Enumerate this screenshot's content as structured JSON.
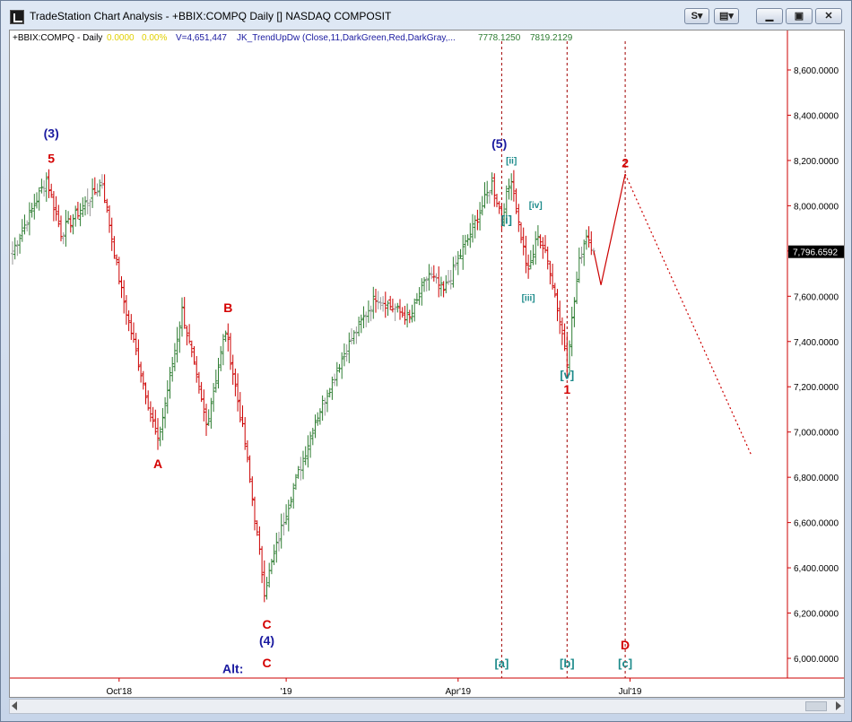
{
  "window": {
    "title": "TradeStation Chart Analysis - +BBIX:COMPQ Daily [] NASDAQ COMPOSIT",
    "buttons": [
      "S",
      "",
      "",
      "",
      ""
    ]
  },
  "status": {
    "symbol": "+BBIX:COMPQ - Daily",
    "change": "0.0000",
    "change_pct": "0.00%",
    "volume": "V=4,651,447",
    "indicator": "JK_TrendUpDw (Close,11,DarkGreen,Red,DarkGray,...",
    "ind_val1": "7778.1250",
    "ind_val2": "7819.2129"
  },
  "colors": {
    "up": "#2e7d32",
    "down": "#cc0000",
    "neutral": "#999999",
    "wave_red": "#d40000",
    "wave_blue": "#1a1aa0",
    "wave_teal": "#1b8a8a",
    "axis": "#cc0000"
  },
  "chart_data": {
    "type": "bar",
    "yticks": [
      "8,600.0000",
      "8,400.0000",
      "8,200.0000",
      "8,000.0000",
      "7,800.0000",
      "7,600.0000",
      "7,400.0000",
      "7,200.0000",
      "7,000.0000",
      "6,800.0000",
      "6,600.0000",
      "6,400.0000",
      "6,200.0000",
      "6,000.0000"
    ],
    "ytick_values": [
      8600,
      8400,
      8200,
      8000,
      7800,
      7600,
      7400,
      7200,
      7000,
      6800,
      6600,
      6400,
      6200,
      6000
    ],
    "ylim": [
      5900,
      8800
    ],
    "last_price": "7,796.6592",
    "last_price_value": 7796.6592,
    "xticks": [
      "Oct'18",
      "'19",
      "Apr'19",
      "Jul'19"
    ],
    "xtick_bar_index": [
      44,
      113,
      184,
      255
    ],
    "vlines_bar_index": [
      202,
      229,
      253
    ],
    "pivots": [
      {
        "i": 0,
        "v": 7800
      },
      {
        "i": 14,
        "v": 8120
      },
      {
        "i": 20,
        "v": 7880
      },
      {
        "i": 37,
        "v": 8100
      },
      {
        "i": 45,
        "v": 7620
      },
      {
        "i": 60,
        "v": 6950
      },
      {
        "i": 70,
        "v": 7540
      },
      {
        "i": 80,
        "v": 7030
      },
      {
        "i": 88,
        "v": 7450
      },
      {
        "i": 96,
        "v": 6950
      },
      {
        "i": 104,
        "v": 6300
      },
      {
        "i": 113,
        "v": 6650
      },
      {
        "i": 125,
        "v": 7050
      },
      {
        "i": 137,
        "v": 7350
      },
      {
        "i": 150,
        "v": 7600
      },
      {
        "i": 164,
        "v": 7500
      },
      {
        "i": 172,
        "v": 7700
      },
      {
        "i": 178,
        "v": 7620
      },
      {
        "i": 190,
        "v": 7900
      },
      {
        "i": 198,
        "v": 8100
      },
      {
        "i": 202,
        "v": 7950
      },
      {
        "i": 206,
        "v": 8130
      },
      {
        "i": 209,
        "v": 7920
      },
      {
        "i": 213,
        "v": 7700
      },
      {
        "i": 217,
        "v": 7880
      },
      {
        "i": 222,
        "v": 7720
      },
      {
        "i": 229,
        "v": 7320
      },
      {
        "i": 234,
        "v": 7750
      },
      {
        "i": 237,
        "v": 7880
      },
      {
        "i": 240,
        "v": 7800
      }
    ],
    "projection_solid": [
      {
        "i": 240,
        "v": 7800
      },
      {
        "i": 243,
        "v": 7650
      },
      {
        "i": 253,
        "v": 8140
      }
    ],
    "projection_dotted": [
      {
        "i": 253,
        "v": 8140
      },
      {
        "i": 305,
        "v": 6900
      }
    ],
    "wave_labels": [
      {
        "text": "(3)",
        "i": 16,
        "v": 8300,
        "color": "blue"
      },
      {
        "text": "5",
        "i": 16,
        "v": 8190,
        "color": "red"
      },
      {
        "text": "A",
        "i": 60,
        "v": 6840,
        "color": "red"
      },
      {
        "text": "B",
        "i": 89,
        "v": 7530,
        "color": "red"
      },
      {
        "text": "C",
        "i": 105,
        "v": 6130,
        "color": "red"
      },
      {
        "text": "(4)",
        "i": 105,
        "v": 6060,
        "color": "blue"
      },
      {
        "text": "Alt:",
        "i": 91,
        "v": 5935,
        "color": "blue"
      },
      {
        "text": "C",
        "i": 105,
        "v": 5960,
        "color": "red"
      },
      {
        "text": "(5)",
        "i": 201,
        "v": 8255,
        "color": "blue"
      },
      {
        "text": "[ii]",
        "i": 206,
        "v": 8185,
        "color": "teal"
      },
      {
        "text": "[i]",
        "i": 204,
        "v": 7920,
        "color": "teal"
      },
      {
        "text": "[iv]",
        "i": 216,
        "v": 7990,
        "color": "teal"
      },
      {
        "text": "[iii]",
        "i": 213,
        "v": 7580,
        "color": "teal"
      },
      {
        "text": "[v]",
        "i": 229,
        "v": 7235,
        "color": "teal"
      },
      {
        "text": "1",
        "i": 229,
        "v": 7170,
        "color": "red"
      },
      {
        "text": "2",
        "i": 253,
        "v": 8170,
        "color": "red"
      },
      {
        "text": "D",
        "i": 253,
        "v": 6040,
        "color": "red"
      },
      {
        "text": "[a]",
        "i": 202,
        "v": 5960,
        "color": "teal"
      },
      {
        "text": "[b]",
        "i": 229,
        "v": 5960,
        "color": "teal"
      },
      {
        "text": "[c]",
        "i": 253,
        "v": 5960,
        "color": "teal"
      }
    ]
  }
}
